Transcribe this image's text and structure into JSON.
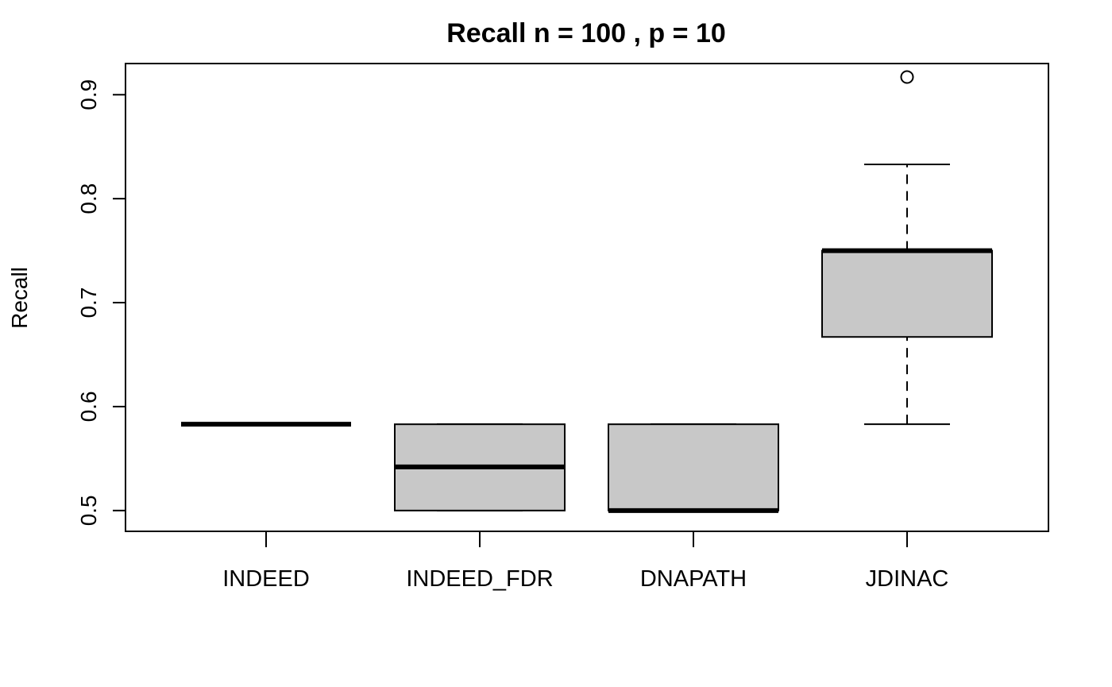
{
  "chart_data": {
    "type": "boxplot",
    "title": "Recall n = 100 , p = 10",
    "xlabel": "",
    "ylabel": "Recall",
    "ylim": [
      0.48,
      0.93
    ],
    "yticks": [
      0.5,
      0.6,
      0.7,
      0.8,
      0.9
    ],
    "ytick_labels": [
      "0.5",
      "0.6",
      "0.7",
      "0.8",
      "0.9"
    ],
    "categories": [
      "INDEED",
      "INDEED_FDR",
      "DNAPATH",
      "JDINAC"
    ],
    "boxes": [
      {
        "category": "INDEED",
        "whisker_low": 0.583,
        "q1": 0.583,
        "median": 0.583,
        "q3": 0.583,
        "whisker_high": 0.583,
        "outliers": []
      },
      {
        "category": "INDEED_FDR",
        "whisker_low": 0.5,
        "q1": 0.5,
        "median": 0.542,
        "q3": 0.583,
        "whisker_high": 0.583,
        "outliers": []
      },
      {
        "category": "DNAPATH",
        "whisker_low": 0.5,
        "q1": 0.5,
        "median": 0.5,
        "q3": 0.583,
        "whisker_high": 0.583,
        "outliers": []
      },
      {
        "category": "JDINAC",
        "whisker_low": 0.583,
        "q1": 0.667,
        "median": 0.75,
        "q3": 0.75,
        "whisker_high": 0.833,
        "outliers": [
          0.917
        ]
      }
    ],
    "box_fill": "#c8c8c8",
    "line_color": "#000000",
    "grid": false,
    "legend": "none"
  }
}
